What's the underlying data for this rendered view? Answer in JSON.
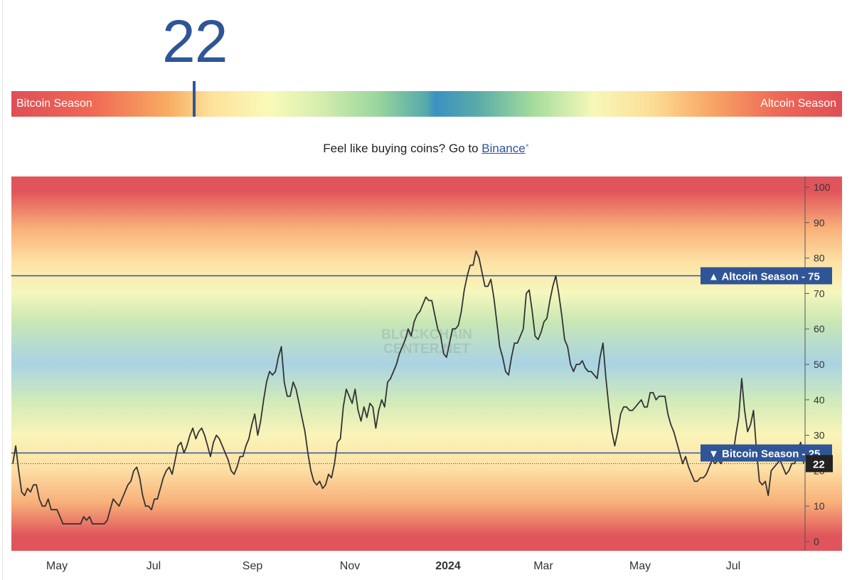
{
  "indicator": {
    "value": "22"
  },
  "gauge": {
    "left_label": "Bitcoin Season",
    "right_label": "Altcoin Season"
  },
  "cta": {
    "text": "Feel like buying coins? Go to ",
    "link_label": "Binance",
    "asterisk": "*"
  },
  "watermark": [
    "BLOCKCHAIN",
    "CENTER.NET"
  ],
  "chart_data": {
    "type": "line",
    "x_tick_labels": [
      "May",
      "Jul",
      "Sep",
      "Nov",
      "2024",
      "Mar",
      "May",
      "Jul"
    ],
    "y_ticks": [
      0,
      10,
      20,
      30,
      40,
      50,
      60,
      70,
      80,
      90,
      100
    ],
    "ylim": [
      0,
      100
    ],
    "grid": false,
    "reference_lines": [
      {
        "label": "▲ Altcoin Season",
        "value": 75
      },
      {
        "label": "▼ Bitcoin Season",
        "value": 25
      }
    ],
    "current_value": 22,
    "line_color": "#333333",
    "background_gradient": "red (Bitcoin/Altcoin extremes) to blue (50)",
    "series": [
      {
        "values": [
          22,
          27,
          20,
          14,
          13,
          15,
          14,
          16,
          16,
          12,
          10,
          10,
          12,
          9,
          9,
          9,
          7,
          5,
          5,
          5,
          5,
          5,
          5,
          5,
          7,
          6,
          7,
          5,
          5,
          5,
          5,
          5,
          6,
          9,
          12,
          11,
          10,
          12,
          14,
          16,
          17,
          20,
          21,
          18,
          13,
          10,
          10,
          9,
          12,
          12,
          15,
          18,
          20,
          21,
          19,
          23,
          27,
          28,
          25,
          27,
          30,
          32,
          29,
          31,
          32,
          30,
          27,
          24,
          28,
          30,
          29,
          27,
          25,
          23,
          20,
          19,
          21,
          24,
          24,
          27,
          29,
          33,
          36,
          30,
          34,
          40,
          45,
          48,
          47,
          48,
          52,
          55,
          45,
          41,
          41,
          45,
          43,
          39,
          35,
          31,
          25,
          20,
          17,
          16,
          17,
          15,
          16,
          19,
          18,
          22,
          28,
          29,
          38,
          43,
          41,
          39,
          43,
          37,
          34,
          38,
          35,
          39,
          38,
          32,
          37,
          40,
          38,
          45,
          46,
          48,
          50,
          53,
          55,
          57,
          60,
          58,
          62,
          64,
          65,
          67,
          69,
          68,
          68,
          64,
          60,
          58,
          53,
          52,
          56,
          60,
          60,
          61,
          65,
          71,
          75,
          78,
          78,
          82,
          80,
          76,
          72,
          72,
          74,
          69,
          62,
          55,
          52,
          48,
          47,
          52,
          56,
          56,
          58,
          60,
          70,
          71,
          65,
          58,
          57,
          59,
          62,
          63,
          68,
          72,
          75,
          70,
          64,
          57,
          55,
          50,
          48,
          50,
          50,
          51,
          49,
          48,
          48,
          47,
          46,
          52,
          56,
          46,
          38,
          31,
          27,
          31,
          36,
          38,
          38,
          37,
          37,
          38,
          39,
          40,
          38,
          38,
          42,
          42,
          40,
          41,
          41,
          41,
          36,
          33,
          31,
          28,
          25,
          22,
          24,
          21,
          19,
          17,
          17,
          18,
          18,
          19,
          21,
          23,
          22,
          23,
          22,
          24,
          24,
          25,
          24,
          30,
          35,
          46,
          37,
          31,
          33,
          37,
          26,
          17,
          16,
          17,
          13,
          20,
          21,
          22,
          23,
          21,
          19,
          20,
          22,
          22,
          26,
          28,
          22
        ]
      }
    ]
  }
}
